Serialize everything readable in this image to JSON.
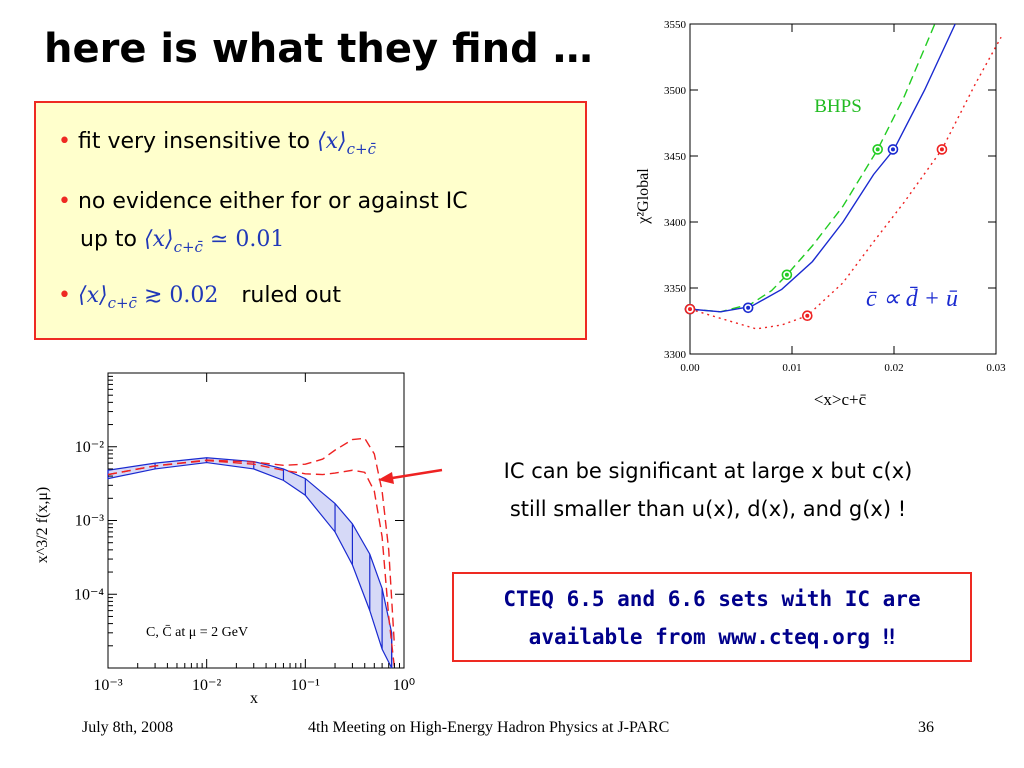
{
  "slide": {
    "title": "here is what they find …",
    "bullets": [
      {
        "text": "fit very insensitive to",
        "math_main": "⟨x⟩",
        "math_sub": "c+c̄",
        "math_tail": ""
      },
      {
        "text": "no evidence either for or against IC",
        "text2": "up to",
        "math_main": "⟨x⟩",
        "math_sub": "c+c̄",
        "math_tail": "≃ 0.01"
      },
      {
        "math_main": "⟨x⟩",
        "math_sub": "c+c̄",
        "math_tail": "≳ 0.02",
        "text": "ruled out"
      }
    ],
    "annotation": {
      "line1": "IC can be significant at large x but c(x)",
      "line2": "still smaller than u(x), d(x), and g(x) !"
    },
    "cteq_box": {
      "line1": "CTEQ 6.5 and 6.6 sets with IC are",
      "line2": "available from www.cteq.org  ‼"
    },
    "footer": {
      "date": "July 8th, 2008",
      "meeting": "4th Meeting on High-Energy Hadron Physics at J-PARC",
      "page": "36"
    },
    "colors": {
      "bullet_box_bg": "#ffffcc",
      "accent_red": "#ee2a22",
      "cteq_text": "#00008b",
      "math_blue": "#2038b8"
    }
  },
  "chart_data": [
    {
      "type": "line",
      "title": "",
      "xlabel": "<x>c+c̄",
      "ylabel": "χ²Global",
      "xlim": [
        0.0,
        0.03
      ],
      "ylim": [
        3300,
        3550
      ],
      "x_ticks": [
        "0.00",
        "0.01",
        "0.02",
        "0.03"
      ],
      "y_ticks": [
        "3300",
        "3350",
        "3400",
        "3450",
        "3500",
        "3550"
      ],
      "annotations": [
        "BHPS",
        "c̄ ∝ d̄ + ū"
      ],
      "series": [
        {
          "name": "BHPS",
          "color": "#22cc22",
          "style": "dashed",
          "x": [
            0.0,
            0.003,
            0.006,
            0.008,
            0.0095,
            0.012,
            0.015,
            0.0184,
            0.021,
            0.024
          ],
          "y": [
            3334,
            3332,
            3338,
            3348,
            3360,
            3382,
            3412,
            3455,
            3495,
            3550
          ],
          "markers": {
            "x": [
              0.0,
              0.0095,
              0.0184
            ],
            "y": [
              3334,
              3360,
              3455
            ]
          }
        },
        {
          "name": "",
          "color": "#1a2ad0",
          "style": "solid",
          "x": [
            0.0,
            0.003,
            0.006,
            0.009,
            0.012,
            0.015,
            0.018,
            0.02,
            0.023,
            0.026
          ],
          "y": [
            3334,
            3332,
            3336,
            3349,
            3370,
            3400,
            3436,
            3455,
            3500,
            3550
          ],
          "markers": {
            "x": [
              0.0,
              0.0057,
              0.0199
            ],
            "y": [
              3334,
              3335,
              3455
            ]
          }
        },
        {
          "name": "c̄ ∝ d̄ + ū",
          "color": "#ee2222",
          "style": "dotted",
          "x": [
            0.0,
            0.003,
            0.0065,
            0.009,
            0.0115,
            0.015,
            0.018,
            0.021,
            0.0247,
            0.028,
            0.0305
          ],
          "y": [
            3334,
            3327,
            3319,
            3322,
            3329,
            3354,
            3385,
            3415,
            3455,
            3505,
            3540
          ],
          "markers": {
            "x": [
              0.0,
              0.0115,
              0.0247
            ],
            "y": [
              3334,
              3329,
              3455
            ]
          }
        }
      ]
    },
    {
      "type": "line",
      "title": "",
      "xlabel": "x",
      "ylabel": "x^3/2 f(x,μ)",
      "x_scale": "log",
      "y_scale": "log",
      "xlim": [
        0.001,
        1.0
      ],
      "ylim": [
        1e-05,
        0.1
      ],
      "x_ticks": [
        "10⁻³",
        "10⁻²",
        "10⁻¹",
        "10⁰"
      ],
      "y_ticks": [
        "10⁻²",
        "10⁻³",
        "10⁻⁴"
      ],
      "annotations": [
        "C, C̄  at μ = 2 GeV"
      ],
      "series": [
        {
          "name": "",
          "color": "#1a2ad0",
          "style": "band",
          "x": [
            0.001,
            0.003,
            0.01,
            0.03,
            0.06,
            0.1,
            0.2,
            0.3,
            0.45,
            0.6,
            0.75
          ],
          "y_upper": [
            0.0048,
            0.006,
            0.0071,
            0.0063,
            0.005,
            0.0037,
            0.0017,
            0.0009,
            0.00035,
            0.00012,
            3e-05
          ],
          "y_lower": [
            0.0037,
            0.005,
            0.0061,
            0.005,
            0.0035,
            0.0022,
            0.0007,
            0.00025,
            6e-05,
            1.8e-05,
            1e-05
          ]
        },
        {
          "name": "",
          "color": "#ee2222",
          "style": "dashed",
          "x": [
            0.001,
            0.003,
            0.01,
            0.03,
            0.06,
            0.1,
            0.15,
            0.2,
            0.3,
            0.4,
            0.5,
            0.6,
            0.7,
            0.8
          ],
          "y": [
            0.0042,
            0.0055,
            0.0066,
            0.0062,
            0.0056,
            0.0058,
            0.0068,
            0.009,
            0.0125,
            0.013,
            0.008,
            0.0025,
            0.0004,
            2e-05
          ]
        },
        {
          "name": "",
          "color": "#ee2222",
          "style": "dashed",
          "x": [
            0.001,
            0.003,
            0.01,
            0.03,
            0.06,
            0.1,
            0.15,
            0.2,
            0.3,
            0.4,
            0.5,
            0.6,
            0.7,
            0.8
          ],
          "y": [
            0.0042,
            0.0055,
            0.0065,
            0.0058,
            0.0048,
            0.0043,
            0.0042,
            0.0044,
            0.0048,
            0.0045,
            0.0025,
            0.0006,
            5e-05,
            1e-05
          ]
        }
      ]
    }
  ]
}
